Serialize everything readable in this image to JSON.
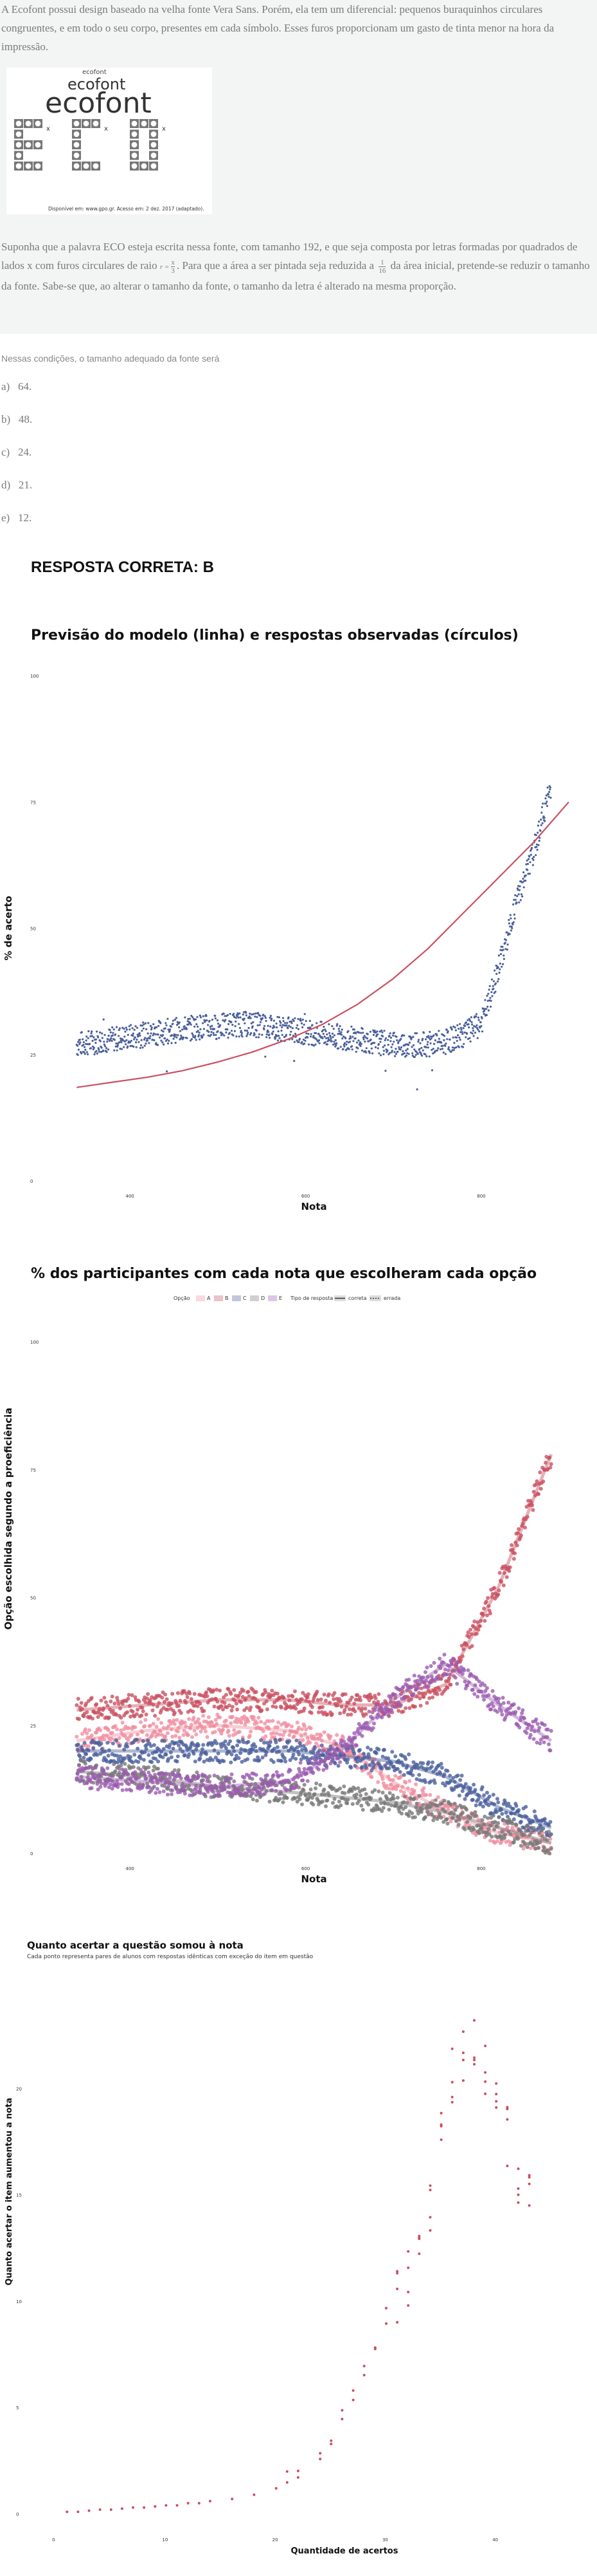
{
  "stem": {
    "p1": "A Ecofont possui design baseado na velha fonte Vera Sans. Porém, ela tem um diferencial: pequenos buraquinhos circulares congruentes, e em todo o seu corpo, presentes em cada símbolo. Esses furos proporcionam um gasto de tinta menor na hora da impressão.",
    "logo_small": "ecofont",
    "logo_mid": "ecofont",
    "logo_big": "ecofont",
    "logo_letters": "ECO",
    "logo_caption": "Disponível em: www.gpo.gr. Acesso em: 2 dez. 2017 (adaptado).",
    "p2a": "Suponha que a palavra ECO esteja escrita nessa fonte, com tamanho 192, e que seja composta por letras formadas por quadrados de lados x com furos circulares de raio ",
    "r_num": "x",
    "r_den": "3",
    "r_prefix": "r =",
    "p2b": ". Para que a área a ser pintada seja reduzida a ",
    "f_num": "1",
    "f_den": "16",
    "p2c": " da área inicial, pretende-se reduzir o tamanho da fonte. Sabe-se que, ao alterar o tamanho da fonte, o tamanho da letra é alterado na mesma proporção."
  },
  "question": {
    "intro": "Nessas condições, o tamanho adequado da fonte será",
    "options": [
      {
        "letter": "a)",
        "text": "64."
      },
      {
        "letter": "b)",
        "text": "48."
      },
      {
        "letter": "c)",
        "text": "24."
      },
      {
        "letter": "d)",
        "text": "21."
      },
      {
        "letter": "e)",
        "text": "12."
      }
    ],
    "answer": "RESPOSTA CORRETA: B"
  },
  "colors": {
    "blue": "#4a5f9c",
    "red": "#c95060",
    "pink": "#f08fa0",
    "gray": "#777777",
    "purple": "#9b5bb0",
    "stem_bg": "#f3f4f4"
  },
  "chart_data": [
    {
      "type": "scatter",
      "title": "Previsão do modelo (linha) e respostas observadas (círculos)",
      "xlabel": "Nota",
      "ylabel": "% de acerto",
      "xticks": [
        "400",
        "600",
        "800"
      ],
      "yticks": [
        "0",
        "25",
        "50",
        "75",
        "100"
      ],
      "xlim": [
        320,
        900
      ],
      "ylim": [
        0,
        100
      ],
      "grid": false,
      "series": [
        {
          "kind": "points",
          "color": "blue",
          "x": [
            340,
            360,
            380,
            400,
            420,
            440,
            460,
            480,
            500,
            520,
            540,
            560,
            580,
            600,
            620,
            640,
            660,
            680,
            700,
            720,
            740,
            760,
            780,
            800,
            810,
            820,
            830,
            840,
            850,
            860,
            870,
            880
          ],
          "y": [
            27,
            27.5,
            28,
            28.5,
            29,
            29.5,
            30,
            30.5,
            30.5,
            31,
            31,
            30.5,
            30,
            29.5,
            29,
            28.5,
            28,
            27.5,
            27,
            27,
            27,
            27.5,
            29,
            31,
            36,
            42,
            48,
            55,
            60,
            65,
            72,
            78
          ]
        },
        {
          "kind": "line",
          "color": "red",
          "x": [
            340,
            380,
            420,
            460,
            500,
            540,
            580,
            620,
            660,
            700,
            740,
            780,
            820,
            860,
            900
          ],
          "y": [
            18.5,
            19.5,
            20.5,
            21.8,
            23.5,
            25.5,
            28,
            31,
            35,
            40,
            46,
            53,
            60,
            67,
            75
          ]
        }
      ]
    },
    {
      "type": "scatter",
      "title": "% dos participantes com cada nota que escolheram cada opção",
      "legend_opcao_title": "Opção",
      "legend_opcao": [
        "A",
        "B",
        "C",
        "D",
        "E"
      ],
      "legend_tipo_title": "Tipo de resposta",
      "legend_tipo": [
        "correta",
        "errada"
      ],
      "xlabel": "Nota",
      "ylabel": "Opção escolhida segundo a proeficiência",
      "xticks": [
        "400",
        "600",
        "800"
      ],
      "yticks": [
        "0",
        "25",
        "50",
        "75",
        "100"
      ],
      "xlim": [
        320,
        900
      ],
      "ylim": [
        0,
        100
      ],
      "series": [
        {
          "name": "A",
          "color": "pink",
          "x": [
            340,
            420,
            500,
            580,
            640,
            700,
            760,
            820,
            880
          ],
          "y": [
            22,
            24,
            25,
            24,
            21,
            14,
            8,
            4,
            2
          ]
        },
        {
          "name": "B",
          "color": "red",
          "x": [
            340,
            420,
            500,
            580,
            640,
            700,
            760,
            820,
            880
          ],
          "y": [
            28,
            29,
            30,
            30,
            29,
            29,
            33,
            52,
            78
          ]
        },
        {
          "name": "C",
          "color": "blue",
          "x": [
            340,
            420,
            500,
            580,
            640,
            700,
            760,
            820,
            880
          ],
          "y": [
            20,
            20,
            20,
            20,
            19,
            18,
            15,
            9,
            5
          ]
        },
        {
          "name": "D",
          "color": "gray",
          "x": [
            340,
            420,
            500,
            580,
            640,
            700,
            760,
            820,
            880
          ],
          "y": [
            16,
            15,
            13,
            12,
            11,
            10,
            8,
            5,
            2
          ]
        },
        {
          "name": "E",
          "color": "purple",
          "x": [
            340,
            420,
            500,
            580,
            640,
            700,
            760,
            820,
            880
          ],
          "y": [
            15,
            14,
            13,
            14,
            20,
            30,
            37,
            29,
            22
          ]
        }
      ]
    },
    {
      "type": "scatter",
      "title": "Quanto acertar a questão somou à nota",
      "subtitle": "Cada ponto representa pares de alunos com respostas idênticas com exceção do item em questão",
      "xlabel": "Quantidade de acertos",
      "ylabel": "Quanto acertar o item aumentou a nota",
      "xticks": [
        "0",
        "10",
        "20",
        "30",
        "40"
      ],
      "yticks": [
        "0",
        "5",
        "10",
        "15",
        "20"
      ],
      "xlim": [
        -1,
        46
      ],
      "ylim": [
        -0.5,
        25
      ],
      "series": [
        {
          "kind": "points",
          "color": "red",
          "x": [
            1,
            2,
            3,
            4,
            5,
            6,
            7,
            8,
            9,
            10,
            11,
            12,
            13,
            14,
            16,
            18,
            20,
            21,
            22,
            24,
            25,
            26,
            27,
            28,
            29,
            30,
            31,
            32,
            33,
            34,
            35,
            36,
            37,
            38,
            39,
            40,
            41,
            42,
            43
          ],
          "y": [
            0.1,
            0.1,
            0.15,
            0.2,
            0.2,
            0.25,
            0.3,
            0.3,
            0.35,
            0.4,
            0.4,
            0.5,
            0.5,
            0.6,
            0.7,
            0.9,
            1.2,
            1.6,
            2.0,
            2.8,
            3.6,
            4.6,
            5.8,
            6.8,
            8.2,
            9.4,
            10.2,
            11.2,
            13.2,
            14.5,
            17.5,
            20.5,
            21.7,
            22.0,
            21.2,
            20.0,
            17.8,
            16.0,
            14.8
          ]
        }
      ]
    }
  ]
}
